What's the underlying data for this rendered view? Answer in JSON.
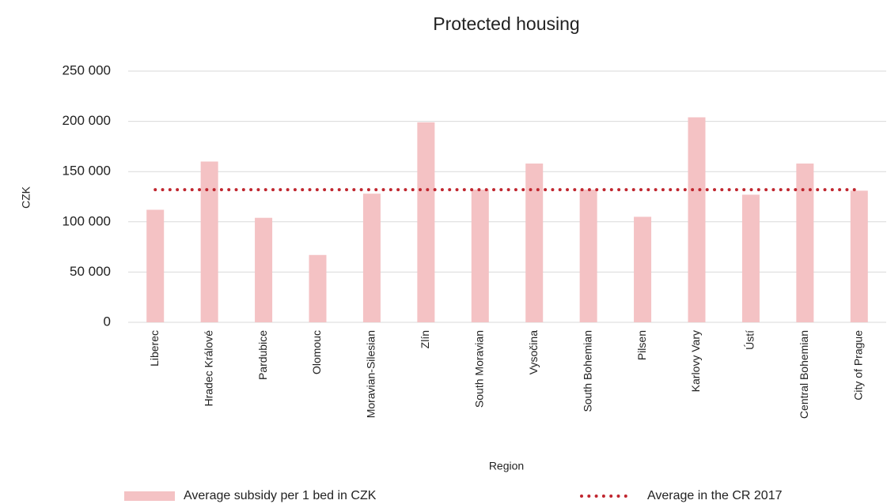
{
  "chart_data": {
    "type": "bar",
    "title": "Protected housing",
    "x_label": "Region",
    "y_label": "CZK",
    "categories": [
      "Liberec",
      "Hradec Králové",
      "Pardubice",
      "Olomouc",
      "Moravian-Silesian",
      "Zlín",
      "South Moravian",
      "Vysočina",
      "South Bohemian",
      "Pilsen",
      "Karlovy Vary",
      "Ústí",
      "Central Bohemian",
      "City of Prague"
    ],
    "series": [
      {
        "name": "Average subsidy per 1 bed in CZK",
        "type": "bar",
        "color": "#f4c2c4",
        "values": [
          112000,
          160000,
          104000,
          67000,
          128000,
          199000,
          132000,
          158000,
          132000,
          105000,
          204000,
          127000,
          158000,
          131000
        ]
      },
      {
        "name": "Average in the CR 2017",
        "type": "line",
        "color": "#c0262f",
        "values": [
          132000,
          132000,
          132000,
          132000,
          132000,
          132000,
          132000,
          132000,
          132000,
          132000,
          132000,
          132000,
          132000,
          132000
        ]
      }
    ],
    "ylim": [
      0,
      250000
    ],
    "yticks": [
      {
        "value": 0,
        "label": "0"
      },
      {
        "value": 50000,
        "label": "50 000"
      },
      {
        "value": 100000,
        "label": "100 000"
      },
      {
        "value": 150000,
        "label": "150 000"
      },
      {
        "value": 200000,
        "label": "200 000"
      },
      {
        "value": 250000,
        "label": "250 000"
      }
    ],
    "grid": true
  }
}
